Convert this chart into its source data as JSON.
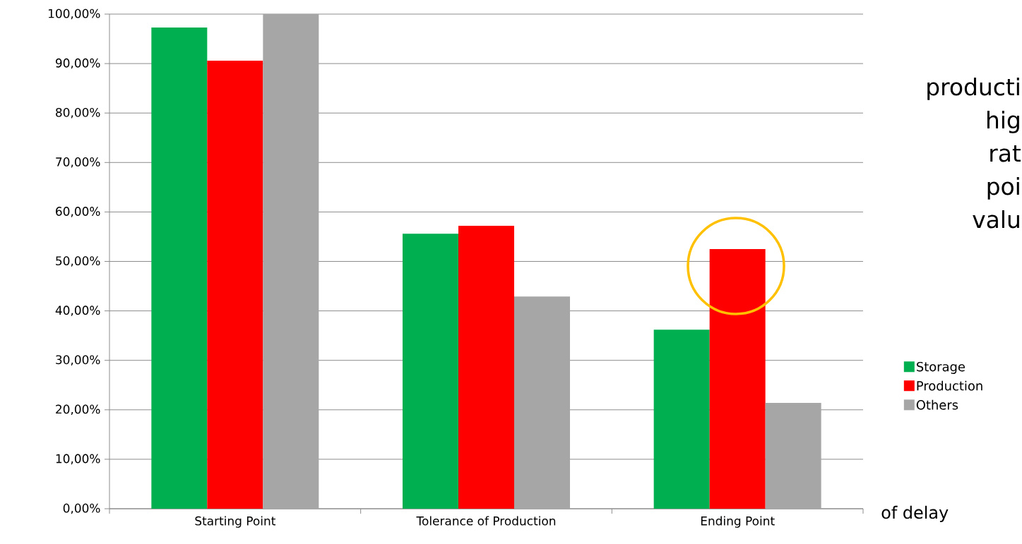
{
  "chart_data": {
    "type": "bar",
    "categories": [
      "Starting Point",
      "Tolerance of Production",
      "Ending Point"
    ],
    "series": [
      {
        "name": "Storage",
        "color": "#00b050",
        "values": [
          97.3,
          55.6,
          36.2
        ]
      },
      {
        "name": "Production",
        "color": "#ff0000",
        "values": [
          90.6,
          57.2,
          52.5
        ]
      },
      {
        "name": "Others",
        "color": "#a6a6a6",
        "values": [
          100,
          42.9,
          21.4
        ]
      }
    ],
    "ylim": [
      0,
      100
    ],
    "yticks": [
      {
        "value": 0,
        "label": "0,00%"
      },
      {
        "value": 10,
        "label": "10,00%"
      },
      {
        "value": 20,
        "label": "20,00%"
      },
      {
        "value": 30,
        "label": "30,00%"
      },
      {
        "value": 40,
        "label": "40,00%"
      },
      {
        "value": 50,
        "label": "50,00%"
      },
      {
        "value": 60,
        "label": "60,00%"
      },
      {
        "value": 70,
        "label": "70,00%"
      },
      {
        "value": 80,
        "label": "80,00%"
      },
      {
        "value": 90,
        "label": "90,00%"
      },
      {
        "value": 100,
        "label": "100,00%"
      }
    ],
    "grid": "y",
    "legend": "right",
    "annotations": [
      "producti",
      "hig",
      "rat",
      "poi",
      "valu",
      "of delay"
    ]
  }
}
